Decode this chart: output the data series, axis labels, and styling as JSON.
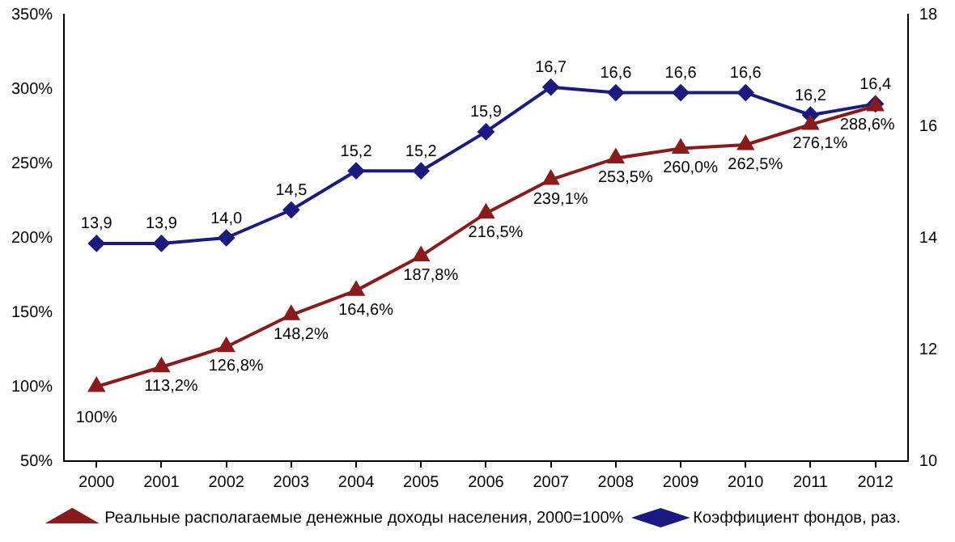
{
  "chart_data": {
    "type": "line",
    "categories": [
      "2000",
      "2001",
      "2002",
      "2003",
      "2004",
      "2005",
      "2006",
      "2007",
      "2008",
      "2009",
      "2010",
      "2011",
      "2012"
    ],
    "series": [
      {
        "name": "Реальные располагаемые денежные доходы населения, 2000=100%",
        "color": "#8b1a1a",
        "marker": "triangle",
        "values": [
          100,
          113.2,
          126.8,
          148.2,
          164.6,
          187.8,
          216.5,
          239.1,
          253.5,
          260.0,
          262.5,
          276.1,
          288.6
        ],
        "value_labels": [
          "100%",
          "113,2%",
          "126,8%",
          "148,2%",
          "164,6%",
          "187,8%",
          "216,5%",
          "239,1%",
          "253,5%",
          "260,0%",
          "262,5%",
          "276,1%",
          "288,6%"
        ]
      },
      {
        "name": "Коэффициент фондов, раз.",
        "color": "#1a1a80",
        "marker": "diamond",
        "axis": "y2",
        "values": [
          13.9,
          13.9,
          14.0,
          14.5,
          15.2,
          15.2,
          15.9,
          16.7,
          16.6,
          16.6,
          16.6,
          16.2,
          16.4
        ],
        "value_labels": [
          "13,9",
          "13,9",
          "14,0",
          "14,5",
          "15,2",
          "15,2",
          "15,9",
          "16,7",
          "16,6",
          "16,6",
          "16,6",
          "16,2",
          "16,4"
        ]
      }
    ],
    "ylim": [
      50,
      350
    ],
    "yticks": [
      {
        "value": 50,
        "label": "50%"
      },
      {
        "value": 100,
        "label": "100%"
      },
      {
        "value": 150,
        "label": "150%"
      },
      {
        "value": 200,
        "label": "200%"
      },
      {
        "value": 250,
        "label": "250%"
      },
      {
        "value": 300,
        "label": "300%"
      },
      {
        "value": 350,
        "label": "350%"
      }
    ],
    "y2lim": [
      10,
      18
    ],
    "y2ticks": [
      10,
      12,
      14,
      16,
      18
    ],
    "grid": false,
    "legend": "bottom"
  }
}
